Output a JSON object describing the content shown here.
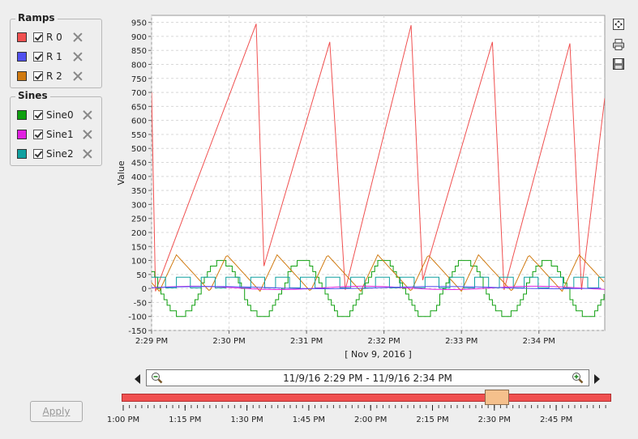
{
  "ramps_group": {
    "title": "Ramps",
    "items": [
      {
        "label": "R 0",
        "color": "#f05050"
      },
      {
        "label": "R 1",
        "color": "#5050f0"
      },
      {
        "label": "R 2",
        "color": "#d07a10"
      }
    ]
  },
  "sines_group": {
    "title": "Sines",
    "items": [
      {
        "label": "Sine0",
        "color": "#10a010"
      },
      {
        "label": "Sine1",
        "color": "#e020e0"
      },
      {
        "label": "Sine2",
        "color": "#10a0a0"
      }
    ]
  },
  "chart": {
    "y_axis_label": "Value",
    "date_label": "[ Nov 9, 2016 ]",
    "y_ticks": [
      "950",
      "900",
      "850",
      "800",
      "750",
      "700",
      "650",
      "600",
      "550",
      "500",
      "450",
      "400",
      "350",
      "300",
      "250",
      "200",
      "150",
      "100",
      "50",
      "0",
      "-50",
      "-100",
      "-150"
    ],
    "x_ticks": [
      "2:29 PM",
      "2:30 PM",
      "2:31 PM",
      "2:32 PM",
      "2:33 PM",
      "2:34 PM"
    ]
  },
  "chart_data": {
    "type": "line",
    "ylabel": "Value",
    "ylim": [
      -150,
      975
    ],
    "x_range": [
      "2:29 PM",
      "2:34:50 PM"
    ],
    "grid": true,
    "series": [
      {
        "name": "R 0",
        "color": "#f05050",
        "x_min": [
          0.0,
          0.05,
          1.35,
          1.45,
          2.3,
          2.5,
          3.35,
          3.5,
          4.4,
          4.55,
          5.4,
          5.55,
          5.85
        ],
        "y": [
          700,
          -10,
          945,
          80,
          880,
          -5,
          940,
          30,
          880,
          -5,
          875,
          -5,
          680
        ]
      },
      {
        "name": "R 1",
        "color": "#5050f0",
        "approx_value": 0
      },
      {
        "name": "R 2",
        "color": "#d07a10",
        "range": [
          -10,
          120
        ]
      },
      {
        "name": "Sine0",
        "color": "#10a010",
        "range": [
          -100,
          100
        ]
      },
      {
        "name": "Sine1",
        "color": "#e020e0",
        "range": [
          -5,
          8
        ]
      },
      {
        "name": "Sine2",
        "color": "#10a0a0",
        "range": [
          0,
          45
        ]
      }
    ]
  },
  "navigator": {
    "range_text": "11/9/16 2:29 PM - 11/9/16 2:34 PM",
    "ticks": [
      "1:00 PM",
      "1:15 PM",
      "1:30 PM",
      "1:45 PM",
      "2:00 PM",
      "2:15 PM",
      "2:30 PM",
      "2:45 PM"
    ]
  },
  "apply_label": "Apply",
  "icons": {
    "zoom_fit": "zoom-fit-icon",
    "print": "printer-icon",
    "save": "floppy-save-icon",
    "zoom_out": "zoom-out-icon",
    "zoom_in": "zoom-in-icon"
  }
}
